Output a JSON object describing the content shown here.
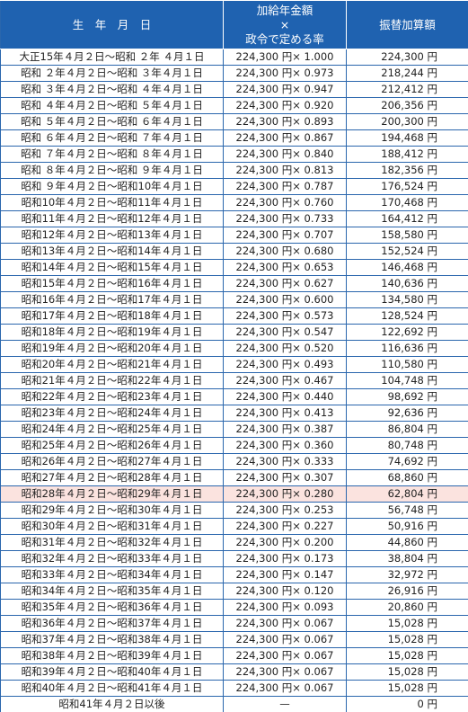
{
  "table": {
    "header": [
      "生　年　月　日",
      [
        "加給年金額",
        "×",
        "政令で定める率"
      ],
      "振替加算額"
    ],
    "rows": [
      [
        "大正15年４月２日～昭和 ２年 ４月１日",
        "224,300 円× 1.000",
        "224,300 円"
      ],
      [
        "昭和 ２年４月２日～昭和 ３年４月１日",
        "224,300 円× 0.973",
        "218,244 円"
      ],
      [
        "昭和 ３年４月２日～昭和 ４年４月１日",
        "224,300 円× 0.947",
        "212,412 円"
      ],
      [
        "昭和 ４年４月２日～昭和 ５年４月１日",
        "224,300 円× 0.920",
        "206,356 円"
      ],
      [
        "昭和 ５年４月２日～昭和 ６年４月１日",
        "224,300 円× 0.893",
        "200,300 円"
      ],
      [
        "昭和 ６年４月２日～昭和 ７年４月１日",
        "224,300 円× 0.867",
        "194,468 円"
      ],
      [
        "昭和 ７年４月２日～昭和 ８年４月１日",
        "224,300 円× 0.840",
        "188,412 円"
      ],
      [
        "昭和 ８年４月２日～昭和 ９年４月１日",
        "224,300 円× 0.813",
        "182,356 円"
      ],
      [
        "昭和 ９年４月２日～昭和10年４月１日",
        "224,300 円× 0.787",
        "176,524 円"
      ],
      [
        "昭和10年４月２日～昭和11年４月１日",
        "224,300 円× 0.760",
        "170,468 円"
      ],
      [
        "昭和11年４月２日～昭和12年４月１日",
        "224,300 円× 0.733",
        "164,412 円"
      ],
      [
        "昭和12年４月２日～昭和13年４月１日",
        "224,300 円× 0.707",
        "158,580 円"
      ],
      [
        "昭和13年４月２日～昭和14年４月１日",
        "224,300 円× 0.680",
        "152,524 円"
      ],
      [
        "昭和14年４月２日～昭和15年４月１日",
        "224,300 円× 0.653",
        "146,468 円"
      ],
      [
        "昭和15年４月２日～昭和16年４月１日",
        "224,300 円× 0.627",
        "140,636 円"
      ],
      [
        "昭和16年４月２日～昭和17年４月１日",
        "224,300 円× 0.600",
        "134,580 円"
      ],
      [
        "昭和17年４月２日～昭和18年４月１日",
        "224,300 円× 0.573",
        "128,524 円"
      ],
      [
        "昭和18年４月２日～昭和19年４月１日",
        "224,300 円× 0.547",
        "122,692 円"
      ],
      [
        "昭和19年４月２日～昭和20年４月１日",
        "224,300 円× 0.520",
        "116,636 円"
      ],
      [
        "昭和20年４月２日～昭和21年４月１日",
        "224,300 円× 0.493",
        "110,580 円"
      ],
      [
        "昭和21年４月２日～昭和22年４月１日",
        "224,300 円× 0.467",
        "104,748 円"
      ],
      [
        "昭和22年４月２日～昭和23年４月１日",
        "224,300 円× 0.440",
        "98,692 円"
      ],
      [
        "昭和23年４月２日～昭和24年４月１日",
        "224,300 円× 0.413",
        "92,636 円"
      ],
      [
        "昭和24年４月２日～昭和25年４月１日",
        "224,300 円× 0.387",
        "86,804 円"
      ],
      [
        "昭和25年４月２日～昭和26年４月１日",
        "224,300 円× 0.360",
        "80,748 円"
      ],
      [
        "昭和26年４月２日～昭和27年４月１日",
        "224,300 円× 0.333",
        "74,692 円"
      ],
      [
        "昭和27年４月２日～昭和28年４月１日",
        "224,300 円× 0.307",
        "68,860 円"
      ],
      [
        "昭和28年４月２日～昭和29年４月１日",
        "224,300 円× 0.280",
        "62,804 円"
      ],
      [
        "昭和29年４月２日～昭和30年４月１日",
        "224,300 円× 0.253",
        "56,748 円"
      ],
      [
        "昭和30年４月２日～昭和31年４月１日",
        "224,300 円× 0.227",
        "50,916 円"
      ],
      [
        "昭和31年４月２日～昭和32年４月１日",
        "224,300 円× 0.200",
        "44,860 円"
      ],
      [
        "昭和32年４月２日～昭和33年４月１日",
        "224,300 円× 0.173",
        "38,804 円"
      ],
      [
        "昭和33年４月２日～昭和34年４月１日",
        "224,300 円× 0.147",
        "32,972 円"
      ],
      [
        "昭和34年４月２日～昭和35年４月１日",
        "224,300 円× 0.120",
        "26,916 円"
      ],
      [
        "昭和35年４月２日～昭和36年４月１日",
        "224,300 円× 0.093",
        "20,860 円"
      ],
      [
        "昭和36年４月２日～昭和37年４月１日",
        "224,300 円× 0.067",
        "15,028 円"
      ],
      [
        "昭和37年４月２日～昭和38年４月１日",
        "224,300 円× 0.067",
        "15,028 円"
      ],
      [
        "昭和38年４月２日～昭和39年４月１日",
        "224,300 円× 0.067",
        "15,028 円"
      ],
      [
        "昭和39年４月２日～昭和40年４月１日",
        "224,300 円× 0.067",
        "15,028 円"
      ],
      [
        "昭和40年４月２日～昭和41年４月１日",
        "224,300 円× 0.067",
        "15,028 円"
      ],
      [
        "昭和41年４月２日以後",
        "—",
        "0 円"
      ]
    ]
  }
}
